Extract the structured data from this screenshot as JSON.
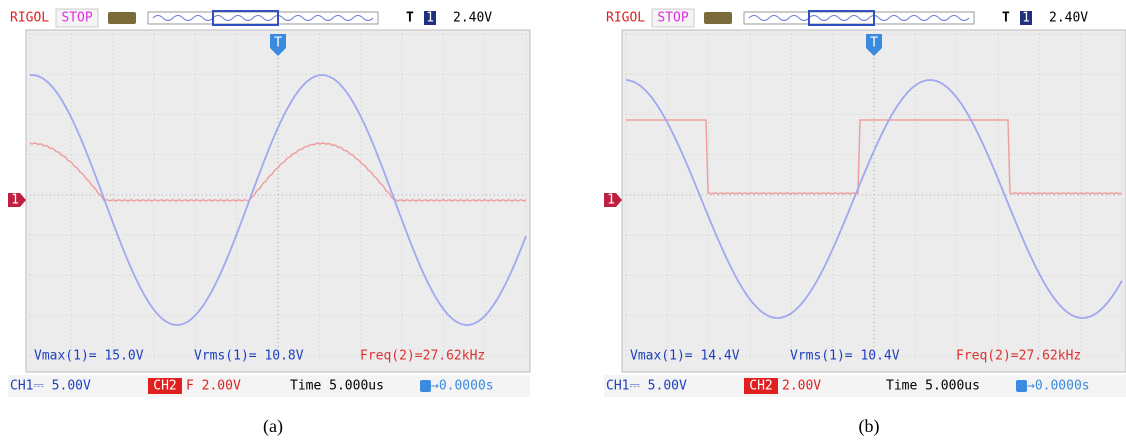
{
  "panels": [
    {
      "header": {
        "brand": "RIGOL",
        "status": "STOP",
        "trigger_marker": "T",
        "trigger_source": "1",
        "trigger_level": "2.40V"
      },
      "channel_marker": "1",
      "measurements": {
        "vmax": "Vmax(1)= 15.0V",
        "vrms": "Vrms(1)= 10.8V",
        "freq": "Freq(2)=27.62kHz"
      },
      "footer": {
        "ch1": "CH1⎓ 5.00V",
        "ch2_label": "CH2",
        "ch2": "F 2.00V",
        "time": "Time 5.000us",
        "offset": "→0.0000s"
      },
      "caption": "(a)"
    },
    {
      "header": {
        "brand": "RIGOL",
        "status": "STOP",
        "trigger_marker": "T",
        "trigger_source": "1",
        "trigger_level": "2.40V"
      },
      "channel_marker": "1",
      "measurements": {
        "vmax": "Vmax(1)= 14.4V",
        "vrms": "Vrms(1)= 10.4V",
        "freq": "Freq(2)=27.62kHz"
      },
      "footer": {
        "ch1": "CH1⎓ 5.00V",
        "ch2_label": "CH2",
        "ch2": "2.00V",
        "time": "Time 5.000us",
        "offset": "→0.0000s"
      },
      "caption": "(b)"
    }
  ]
}
